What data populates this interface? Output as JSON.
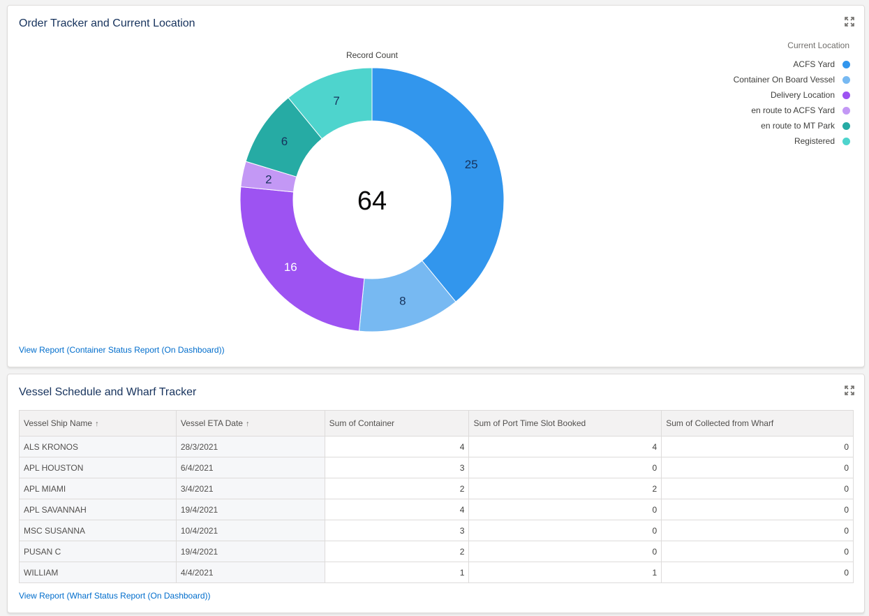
{
  "card1": {
    "title": "Order Tracker and Current Location",
    "view_report": "View Report (Container Status Report (On Dashboard))"
  },
  "card2": {
    "title": "Vessel Schedule and Wharf Tracker",
    "view_report": "View Report (Wharf Status Report (On Dashboard))"
  },
  "chart_data": {
    "type": "pie",
    "subtype": "donut",
    "title": "Record Count",
    "total": 64,
    "legend_title": "Current Location",
    "legend_position": "top-right",
    "categories": [
      "ACFS Yard",
      "Container On Board Vessel",
      "Delivery Location",
      "en route to ACFS Yard",
      "en route to MT Park",
      "Registered"
    ],
    "values": [
      25,
      8,
      16,
      2,
      6,
      7
    ],
    "colors": [
      "#3296ed",
      "#77b9f2",
      "#9d53f2",
      "#c398f5",
      "#26aba4",
      "#4ed4cd"
    ],
    "label_colors": [
      "#16325c",
      "#16325c",
      "#ffffff",
      "#16325c",
      "#16325c",
      "#16325c"
    ]
  },
  "table": {
    "columns": [
      {
        "label": "Vessel Ship Name",
        "sort": "↑"
      },
      {
        "label": "Vessel ETA Date",
        "sort": "↑"
      },
      {
        "label": "Sum of Container",
        "sort": ""
      },
      {
        "label": "Sum of Port Time Slot Booked",
        "sort": ""
      },
      {
        "label": "Sum of Collected from Wharf",
        "sort": ""
      }
    ],
    "rows": [
      [
        "ALS KRONOS",
        "28/3/2021",
        "4",
        "4",
        "0"
      ],
      [
        "APL HOUSTON",
        "6/4/2021",
        "3",
        "0",
        "0"
      ],
      [
        "APL MIAMI",
        "3/4/2021",
        "2",
        "2",
        "0"
      ],
      [
        "APL SAVANNAH",
        "19/4/2021",
        "4",
        "0",
        "0"
      ],
      [
        "MSC SUSANNA",
        "10/4/2021",
        "3",
        "0",
        "0"
      ],
      [
        "PUSAN C",
        "19/4/2021",
        "2",
        "0",
        "0"
      ],
      [
        "WILLIAM",
        "4/4/2021",
        "1",
        "1",
        "0"
      ]
    ]
  },
  "icons": {
    "expand": "expand-icon"
  }
}
